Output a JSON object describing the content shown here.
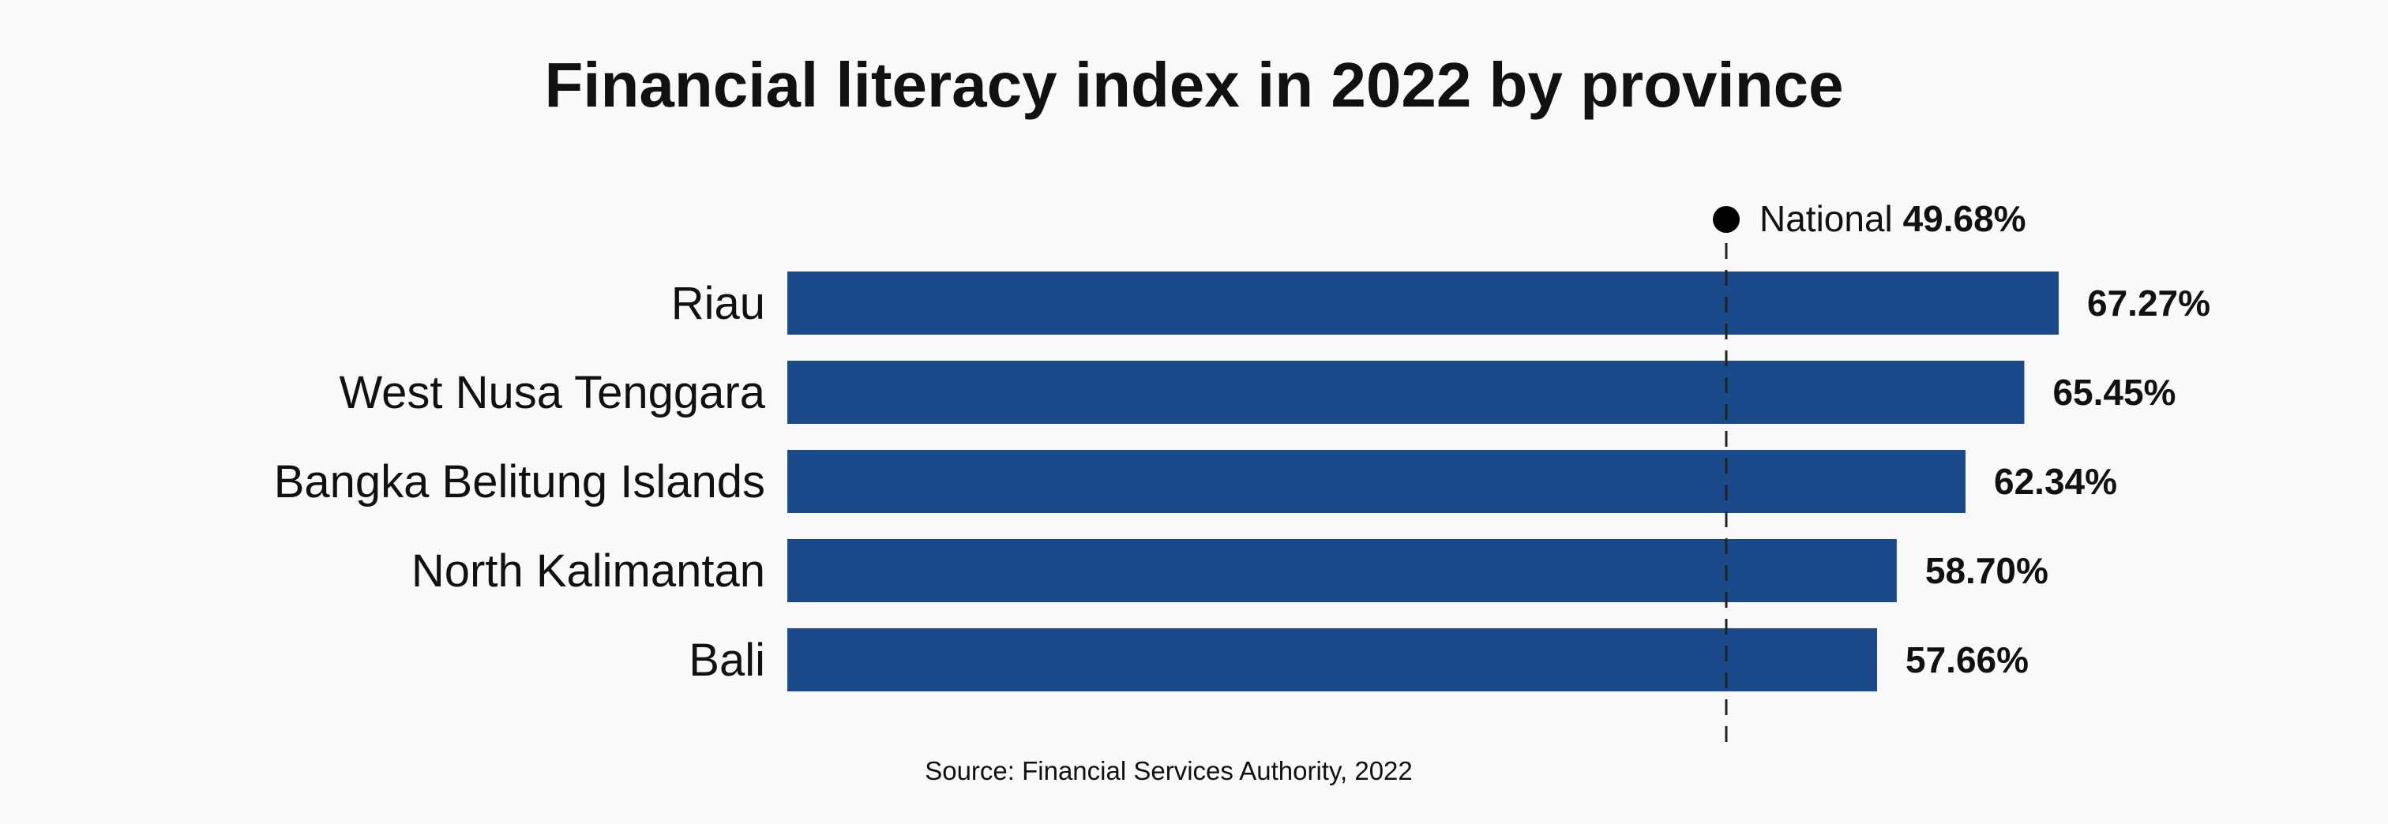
{
  "chart_data": {
    "type": "bar",
    "orientation": "horizontal",
    "title": "Financial literacy index in 2022 by province",
    "source": "Source: Financial Services Authority, 2022",
    "categories": [
      "Riau",
      "West Nusa Tenggara",
      "Bangka Belitung Islands",
      "North Kalimantan",
      "Bali"
    ],
    "values": [
      67.27,
      65.45,
      62.34,
      58.7,
      57.66
    ],
    "value_labels": [
      "67.27%",
      "65.45%",
      "62.34%",
      "58.70%",
      "57.66%"
    ],
    "unit": "%",
    "bar_color": "#1a4a8a",
    "reference_line": {
      "name": "National",
      "value": 49.68,
      "label": "49.68%"
    },
    "grid": false
  }
}
